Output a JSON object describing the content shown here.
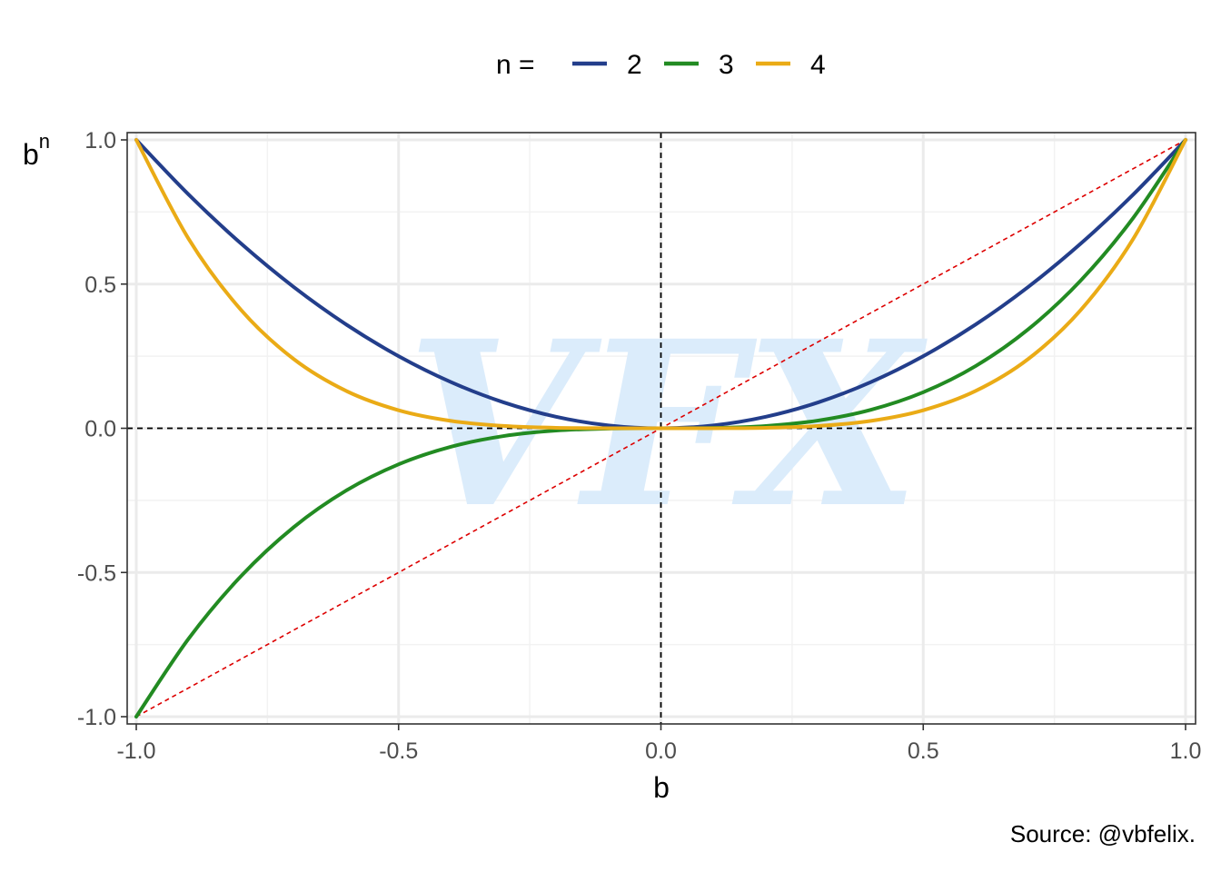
{
  "chart_data": {
    "type": "line",
    "title": "",
    "xlabel": "b",
    "ylabel_base": "b",
    "ylabel_exponent": "n",
    "xlim": [
      -1.0,
      1.0
    ],
    "ylim": [
      -1.0,
      1.0
    ],
    "x_ticks": [
      -1.0,
      -0.5,
      0.0,
      0.5,
      1.0
    ],
    "x_tick_labels": [
      "-1.0",
      "-0.5",
      "0.0",
      "0.5",
      "1.0"
    ],
    "y_ticks": [
      -1.0,
      -0.5,
      0.0,
      0.5,
      1.0
    ],
    "y_tick_labels": [
      "-1.0",
      "-0.5",
      "0.0",
      "0.5",
      "1.0"
    ],
    "grid": true,
    "legend": {
      "position": "top",
      "title": "n =",
      "entries": [
        "2",
        "3",
        "4"
      ]
    },
    "series": [
      {
        "name": "2",
        "color": "#233e8b",
        "x": [
          -1.0,
          -0.9,
          -0.8,
          -0.7,
          -0.6,
          -0.5,
          -0.4,
          -0.3,
          -0.2,
          -0.1,
          0.0,
          0.1,
          0.2,
          0.3,
          0.4,
          0.5,
          0.6,
          0.7,
          0.8,
          0.9,
          1.0
        ],
        "y": [
          1.0,
          0.81,
          0.64,
          0.49,
          0.36,
          0.25,
          0.16,
          0.09,
          0.04,
          0.01,
          0.0,
          0.01,
          0.04,
          0.09,
          0.16,
          0.25,
          0.36,
          0.49,
          0.64,
          0.81,
          1.0
        ]
      },
      {
        "name": "3",
        "color": "#228b22",
        "x": [
          -1.0,
          -0.9,
          -0.8,
          -0.7,
          -0.6,
          -0.5,
          -0.4,
          -0.3,
          -0.2,
          -0.1,
          0.0,
          0.1,
          0.2,
          0.3,
          0.4,
          0.5,
          0.6,
          0.7,
          0.8,
          0.9,
          1.0
        ],
        "y": [
          -1.0,
          -0.729,
          -0.512,
          -0.343,
          -0.216,
          -0.125,
          -0.064,
          -0.027,
          -0.008,
          -0.001,
          0.0,
          0.001,
          0.008,
          0.027,
          0.064,
          0.125,
          0.216,
          0.343,
          0.512,
          0.729,
          1.0
        ]
      },
      {
        "name": "4",
        "color": "#eaab16",
        "x": [
          -1.0,
          -0.9,
          -0.8,
          -0.7,
          -0.6,
          -0.5,
          -0.4,
          -0.3,
          -0.2,
          -0.1,
          0.0,
          0.1,
          0.2,
          0.3,
          0.4,
          0.5,
          0.6,
          0.7,
          0.8,
          0.9,
          1.0
        ],
        "y": [
          1.0,
          0.6561,
          0.4096,
          0.2401,
          0.1296,
          0.0625,
          0.0256,
          0.0081,
          0.0016,
          0.0001,
          0.0,
          0.0001,
          0.0016,
          0.0081,
          0.0256,
          0.0625,
          0.1296,
          0.2401,
          0.4096,
          0.6561,
          1.0
        ]
      }
    ],
    "reference_lines": [
      {
        "kind": "vertical",
        "x": 0.0,
        "color": "#000000",
        "style": "dashed"
      },
      {
        "kind": "horizontal",
        "y": 0.0,
        "color": "#000000",
        "style": "dashed"
      },
      {
        "kind": "identity",
        "x": [
          -1.0,
          1.0
        ],
        "y": [
          -1.0,
          1.0
        ],
        "color": "#dd0000",
        "style": "dotted"
      }
    ],
    "watermark": "VFX",
    "caption": "Source: @vbfelix."
  }
}
